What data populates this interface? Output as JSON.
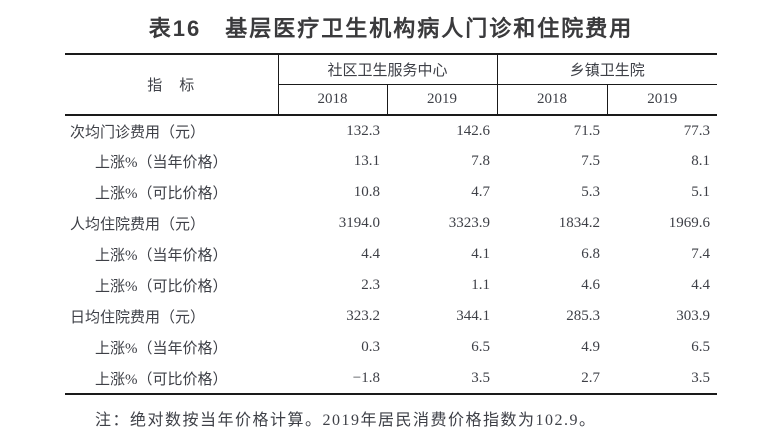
{
  "title": "表16　基层医疗卫生机构病人门诊和住院费用",
  "table": {
    "indicator_header": "指　标",
    "groups": [
      {
        "label": "社区卫生服务中心",
        "years": [
          "2018",
          "2019"
        ]
      },
      {
        "label": "乡镇卫生院",
        "years": [
          "2018",
          "2019"
        ]
      }
    ],
    "rows": [
      {
        "label": "次均门诊费用（元）",
        "indent": false,
        "values": [
          "132.3",
          "142.6",
          "71.5",
          "77.3"
        ]
      },
      {
        "label": "上涨%（当年价格）",
        "indent": true,
        "values": [
          "13.1",
          "7.8",
          "7.5",
          "8.1"
        ]
      },
      {
        "label": "上涨%（可比价格）",
        "indent": true,
        "values": [
          "10.8",
          "4.7",
          "5.3",
          "5.1"
        ]
      },
      {
        "label": "人均住院费用（元）",
        "indent": false,
        "values": [
          "3194.0",
          "3323.9",
          "1834.2",
          "1969.6"
        ]
      },
      {
        "label": "上涨%（当年价格）",
        "indent": true,
        "values": [
          "4.4",
          "4.1",
          "6.8",
          "7.4"
        ]
      },
      {
        "label": "上涨%（可比价格）",
        "indent": true,
        "values": [
          "2.3",
          "1.1",
          "4.6",
          "4.4"
        ]
      },
      {
        "label": "日均住院费用（元）",
        "indent": false,
        "values": [
          "323.2",
          "344.1",
          "285.3",
          "303.9"
        ]
      },
      {
        "label": "上涨%（当年价格）",
        "indent": true,
        "values": [
          "0.3",
          "6.5",
          "4.9",
          "6.5"
        ]
      },
      {
        "label": "上涨%（可比价格）",
        "indent": true,
        "values": [
          "−1.8",
          "3.5",
          "2.7",
          "3.5"
        ]
      }
    ]
  },
  "note": "注：绝对数按当年价格计算。2019年居民消费价格指数为102.9。",
  "colors": {
    "background": "#ffffff",
    "text": "#3e4047",
    "title": "#3a3a3c",
    "border": "#1a1a1a"
  }
}
